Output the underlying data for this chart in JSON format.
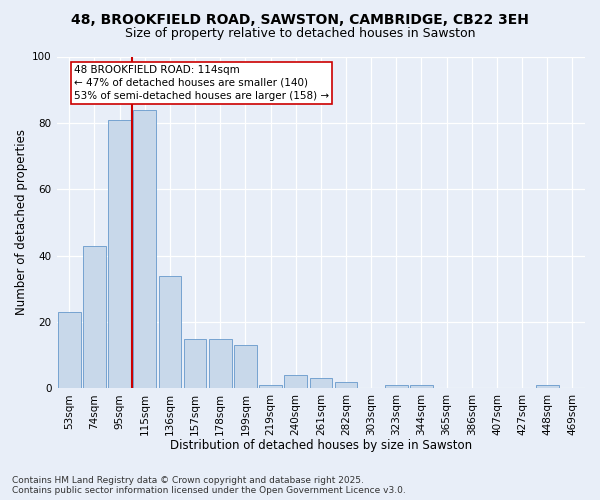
{
  "title1": "48, BROOKFIELD ROAD, SAWSTON, CAMBRIDGE, CB22 3EH",
  "title2": "Size of property relative to detached houses in Sawston",
  "xlabel": "Distribution of detached houses by size in Sawston",
  "ylabel": "Number of detached properties",
  "categories": [
    "53sqm",
    "74sqm",
    "95sqm",
    "115sqm",
    "136sqm",
    "157sqm",
    "178sqm",
    "199sqm",
    "219sqm",
    "240sqm",
    "261sqm",
    "282sqm",
    "303sqm",
    "323sqm",
    "344sqm",
    "365sqm",
    "386sqm",
    "407sqm",
    "427sqm",
    "448sqm",
    "469sqm"
  ],
  "values": [
    23,
    43,
    81,
    84,
    34,
    15,
    15,
    13,
    1,
    4,
    3,
    2,
    0,
    1,
    1,
    0,
    0,
    0,
    0,
    1,
    0
  ],
  "bar_color": "#c8d8ea",
  "bar_edge_color": "#6699cc",
  "vline_color": "#cc0000",
  "annotation_text": "48 BROOKFIELD ROAD: 114sqm\n← 47% of detached houses are smaller (140)\n53% of semi-detached houses are larger (158) →",
  "annotation_box_color": "#ffffff",
  "annotation_box_edge": "#cc0000",
  "ylim": [
    0,
    100
  ],
  "yticks": [
    0,
    20,
    40,
    60,
    80,
    100
  ],
  "background_color": "#e8eef8",
  "grid_color": "#ffffff",
  "footnote": "Contains HM Land Registry data © Crown copyright and database right 2025.\nContains public sector information licensed under the Open Government Licence v3.0.",
  "title1_fontsize": 10,
  "title2_fontsize": 9,
  "xlabel_fontsize": 8.5,
  "ylabel_fontsize": 8.5,
  "tick_fontsize": 7.5,
  "annotation_fontsize": 7.5,
  "footnote_fontsize": 6.5
}
